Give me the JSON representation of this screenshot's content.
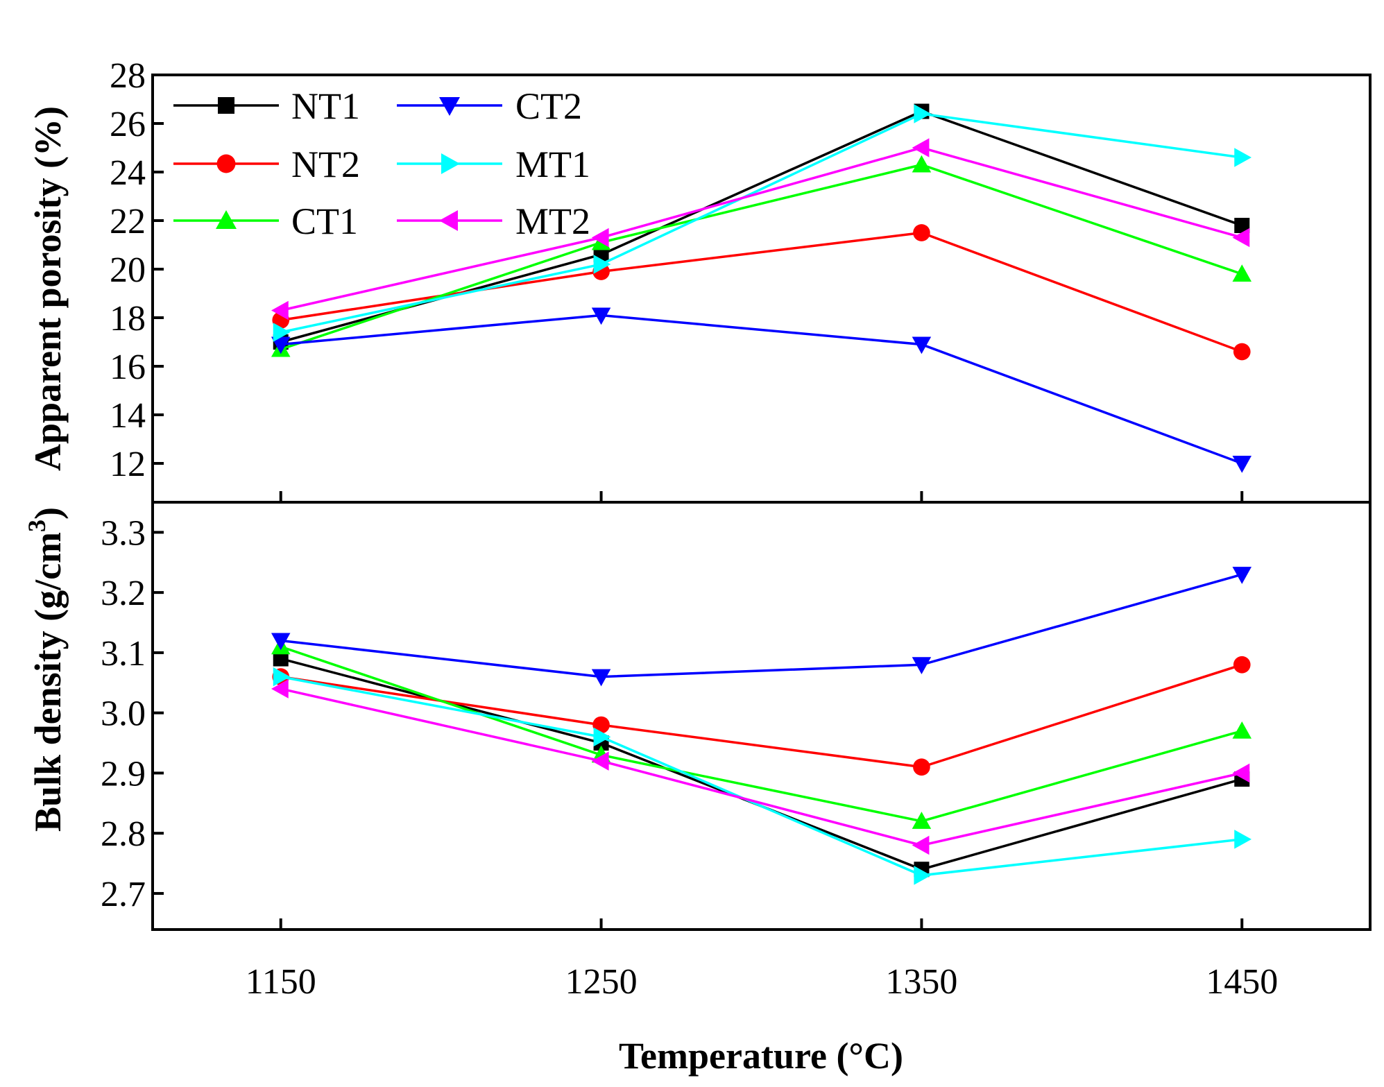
{
  "chart_data": [
    {
      "type": "line",
      "panel": "top",
      "ylabel": "Apparent porosity (%)",
      "xlabel": "",
      "x": [
        1150,
        1250,
        1350,
        1450
      ],
      "xlim": [
        1110,
        1490
      ],
      "ylim": [
        10.4,
        28
      ],
      "yticks": [
        12,
        14,
        16,
        18,
        20,
        22,
        24,
        26,
        28
      ],
      "ytick_labels": [
        "12",
        "14",
        "16",
        "18",
        "20",
        "22",
        "24",
        "26",
        "28"
      ],
      "grid": false,
      "legend_position": "top-left",
      "series": [
        {
          "name": "NT1",
          "color": "#000000",
          "marker": "square",
          "values": [
            17.0,
            20.6,
            26.5,
            21.8
          ]
        },
        {
          "name": "NT2",
          "color": "#ff0000",
          "marker": "circle",
          "values": [
            17.9,
            19.9,
            21.5,
            16.6
          ]
        },
        {
          "name": "CT1",
          "color": "#00ff00",
          "marker": "triangle-up",
          "values": [
            16.7,
            21.1,
            24.3,
            19.8
          ]
        },
        {
          "name": "CT2",
          "color": "#0000ff",
          "marker": "triangle-down",
          "values": [
            16.9,
            18.1,
            16.9,
            12.0
          ]
        },
        {
          "name": "MT1",
          "color": "#00ffff",
          "marker": "triangle-right",
          "values": [
            17.4,
            20.2,
            26.4,
            24.6
          ]
        },
        {
          "name": "MT2",
          "color": "#ff00ff",
          "marker": "triangle-left",
          "values": [
            18.3,
            21.3,
            25.0,
            21.3
          ]
        }
      ]
    },
    {
      "type": "line",
      "panel": "bottom",
      "ylabel": "Bulk density (g/cm",
      "ylabel_sup": "3",
      "ylabel_end": ")",
      "xlabel": "Temperature (°C)",
      "x": [
        1150,
        1250,
        1350,
        1450
      ],
      "xlim": [
        1110,
        1490
      ],
      "xticks": [
        1150,
        1250,
        1350,
        1450
      ],
      "xtick_labels": [
        "1150",
        "1250",
        "1350",
        "1450"
      ],
      "ylim": [
        2.64,
        3.35
      ],
      "yticks": [
        2.7,
        2.8,
        2.9,
        3.0,
        3.1,
        3.2,
        3.3
      ],
      "ytick_labels": [
        "2.7",
        "2.8",
        "2.9",
        "3.0",
        "3.1",
        "3.2",
        "3.3"
      ],
      "grid": false,
      "series": [
        {
          "name": "NT1",
          "color": "#000000",
          "marker": "square",
          "values": [
            3.09,
            2.95,
            2.74,
            2.89
          ]
        },
        {
          "name": "NT2",
          "color": "#ff0000",
          "marker": "circle",
          "values": [
            3.06,
            2.98,
            2.91,
            3.08
          ]
        },
        {
          "name": "CT1",
          "color": "#00ff00",
          "marker": "triangle-up",
          "values": [
            3.11,
            2.93,
            2.82,
            2.97
          ]
        },
        {
          "name": "CT2",
          "color": "#0000ff",
          "marker": "triangle-down",
          "values": [
            3.12,
            3.06,
            3.08,
            3.23
          ]
        },
        {
          "name": "MT1",
          "color": "#00ffff",
          "marker": "triangle-right",
          "values": [
            3.06,
            2.96,
            2.73,
            2.79
          ]
        },
        {
          "name": "MT2",
          "color": "#ff00ff",
          "marker": "triangle-left",
          "values": [
            3.04,
            2.92,
            2.78,
            2.9
          ]
        }
      ]
    }
  ]
}
